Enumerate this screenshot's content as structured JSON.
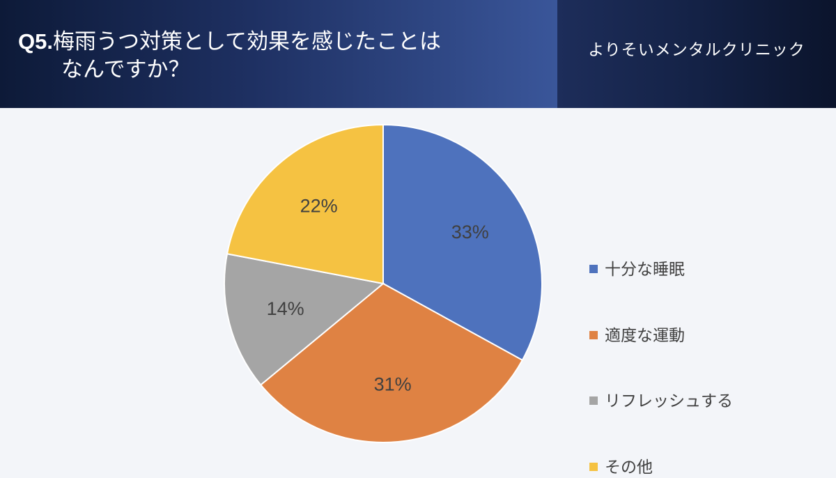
{
  "header": {
    "question_number": "Q5.",
    "title_line1": "梅雨うつ対策として効果を感じたことは",
    "title_line2": "なんですか？",
    "brand": "よりそいメンタルクリニック"
  },
  "chart_data": {
    "type": "pie",
    "title": "",
    "categories": [
      "十分な睡眠",
      "適度な運動",
      "リフレッシュする",
      "その他"
    ],
    "values": [
      33,
      31,
      14,
      22
    ],
    "labels": [
      "33%",
      "31%",
      "14%",
      "22%"
    ],
    "colors": [
      "#4e72bd",
      "#df8243",
      "#a5a5a5",
      "#f5c242"
    ],
    "start_angle_deg": 0,
    "direction": "clockwise",
    "legend": "right",
    "label_color": "#404040"
  }
}
